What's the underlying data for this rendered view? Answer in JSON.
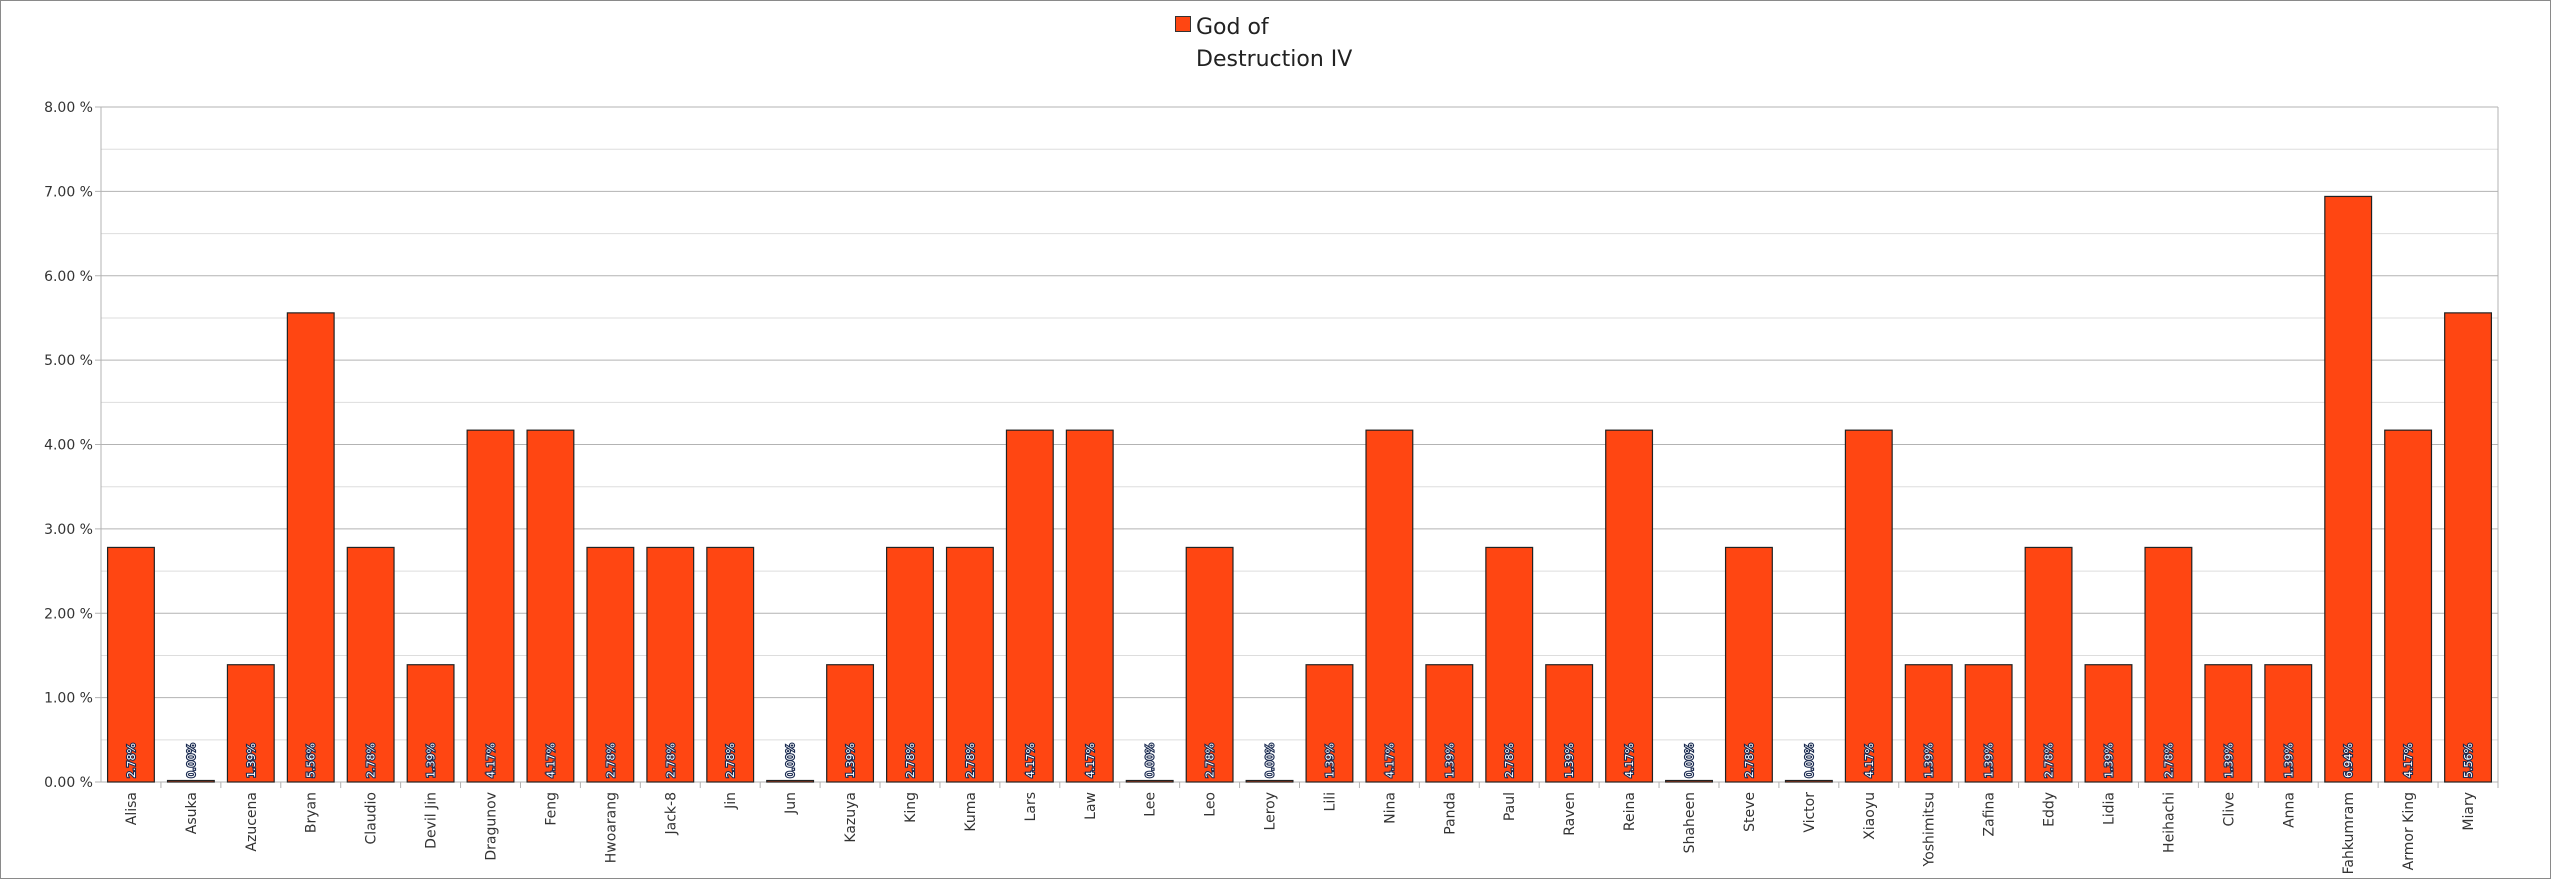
{
  "chart_data": {
    "type": "bar",
    "legend": {
      "label": "God of Destruction IV",
      "position": "top"
    },
    "series": [
      {
        "name": "God of Destruction IV",
        "color": "#ff4612",
        "values": [
          2.78,
          0.0,
          1.39,
          5.56,
          2.78,
          1.39,
          4.17,
          4.17,
          2.78,
          2.78,
          2.78,
          0.0,
          1.39,
          2.78,
          2.78,
          4.17,
          4.17,
          0.0,
          2.78,
          0.0,
          1.39,
          4.17,
          1.39,
          2.78,
          1.39,
          4.17,
          0.0,
          2.78,
          0.0,
          4.17,
          1.39,
          1.39,
          2.78,
          1.39,
          2.78,
          1.39,
          1.39,
          6.94,
          4.17,
          5.56
        ],
        "labels": [
          "2.78%",
          "0.00%",
          "1.39%",
          "5.56%",
          "2.78%",
          "1.39%",
          "4.17%",
          "4.17%",
          "2.78%",
          "2.78%",
          "2.78%",
          "0.00%",
          "1.39%",
          "2.78%",
          "2.78%",
          "4.17%",
          "4.17%",
          "0.00%",
          "2.78%",
          "0.00%",
          "1.39%",
          "4.17%",
          "1.39%",
          "2.78%",
          "1.39%",
          "4.17%",
          "0.00%",
          "2.78%",
          "0.00%",
          "4.17%",
          "1.39%",
          "1.39%",
          "2.78%",
          "1.39%",
          "2.78%",
          "1.39%",
          "1.39%",
          "6.94%",
          "4.17%",
          "5.56%"
        ]
      }
    ],
    "categories": [
      "Alisa",
      "Asuka",
      "Azucena",
      "Bryan",
      "Claudio",
      "Devil Jin",
      "Dragunov",
      "Feng",
      "Hwoarang",
      "Jack-8",
      "Jin",
      "Jun",
      "Kazuya",
      "King",
      "Kuma",
      "Lars",
      "Law",
      "Lee",
      "Leo",
      "Leroy",
      "Lili",
      "Nina",
      "Panda",
      "Paul",
      "Raven",
      "Reina",
      "Shaheen",
      "Steve",
      "Victor",
      "Xiaoyu",
      "Yoshimitsu",
      "Zafina",
      "Eddy",
      "Lidia",
      "Heihachi",
      "Clive",
      "Anna",
      "Fahkumram",
      "Armor King",
      "Miary"
    ],
    "ylim": [
      0,
      8
    ],
    "yticks": [
      "0.00 %",
      "1.00 %",
      "2.00 %",
      "3.00 %",
      "4.00 %",
      "5.00 %",
      "6.00 %",
      "7.00 %",
      "8.00 %"
    ],
    "minor_grid": true,
    "grid": true,
    "xlabel": "",
    "ylabel": "",
    "title": ""
  }
}
